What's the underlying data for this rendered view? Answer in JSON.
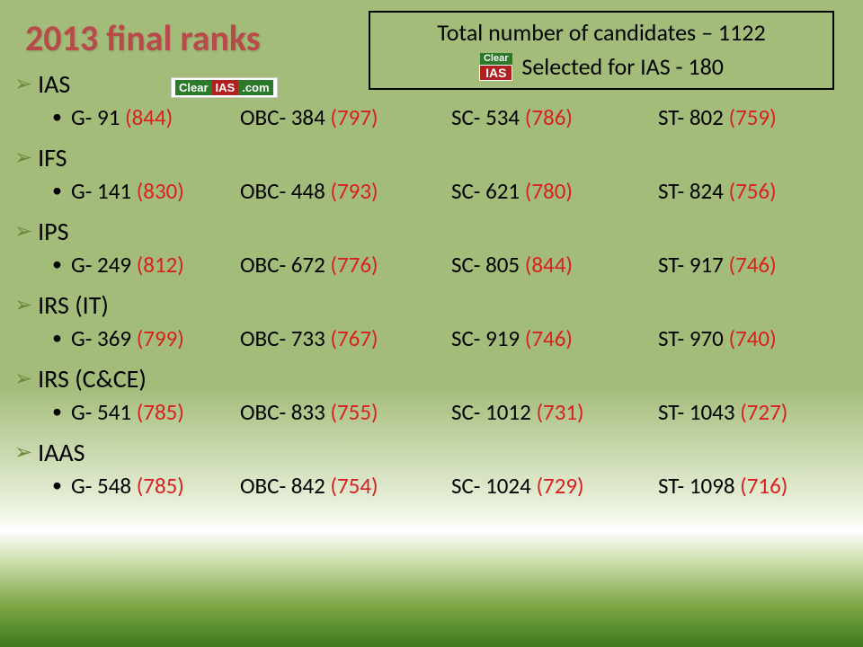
{
  "title": "2013 final ranks",
  "info": {
    "line1": "Total number of candidates – 1122",
    "line2": "Selected for IAS - 180"
  },
  "logo": {
    "p1": "Clear",
    "p2": "IAS",
    "p3": ".com"
  },
  "colors": {
    "title": "#b84a4a",
    "red": "#d82020",
    "black": "#000000",
    "arrow": "#6a8a3a",
    "bg_top": "#a4bc7a",
    "bg_bottom": "#3d7a1f"
  },
  "fonts": {
    "title_size": 40,
    "service_size": 28,
    "data_size": 25,
    "info_size": 26
  },
  "categories": [
    "G",
    "OBC",
    "SC",
    "ST"
  ],
  "services": [
    {
      "name": "IAS",
      "data": [
        {
          "rank": "91",
          "marks": "844"
        },
        {
          "rank": "384",
          "marks": "797"
        },
        {
          "rank": "534",
          "marks": "786"
        },
        {
          "rank": "802",
          "marks": "759"
        }
      ]
    },
    {
      "name": "IFS",
      "data": [
        {
          "rank": "141",
          "marks": "830"
        },
        {
          "rank": "448",
          "marks": "793"
        },
        {
          "rank": "621",
          "marks": "780"
        },
        {
          "rank": "824",
          "marks": "756"
        }
      ]
    },
    {
      "name": "IPS",
      "data": [
        {
          "rank": "249",
          "marks": "812"
        },
        {
          "rank": "672",
          "marks": "776"
        },
        {
          "rank": "805",
          "marks": "844"
        },
        {
          "rank": "917",
          "marks": "746"
        }
      ]
    },
    {
      "name": "IRS (IT)",
      "data": [
        {
          "rank": "369",
          "marks": "799"
        },
        {
          "rank": "733",
          "marks": "767"
        },
        {
          "rank": "919",
          "marks": "746"
        },
        {
          "rank": "970",
          "marks": "740"
        }
      ]
    },
    {
      "name": "IRS (C&CE)",
      "data": [
        {
          "rank": "541",
          "marks": "785"
        },
        {
          "rank": "833",
          "marks": "755"
        },
        {
          "rank": "1012",
          "marks": "731"
        },
        {
          "rank": "1043",
          "marks": "727"
        }
      ]
    },
    {
      "name": "IAAS",
      "data": [
        {
          "rank": "548",
          "marks": "785"
        },
        {
          "rank": "842",
          "marks": "754"
        },
        {
          "rank": "1024",
          "marks": "729"
        },
        {
          "rank": "1098",
          "marks": "716"
        }
      ]
    }
  ]
}
